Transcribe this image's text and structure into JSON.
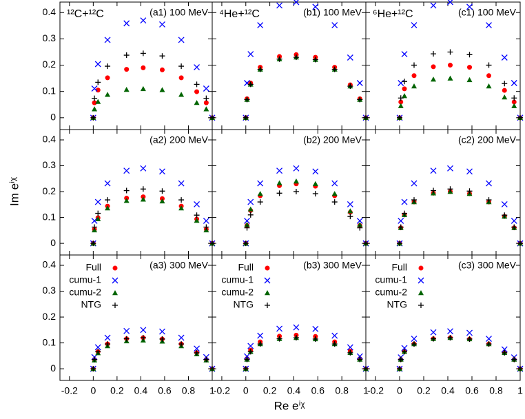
{
  "x_label": "Re eⁱᵡ",
  "y_label": "Im eⁱᵡ",
  "chart_data": [
    {
      "type": "scatter",
      "title": "(a1) 100 MeV",
      "annotation": "¹²C+¹²C",
      "xlim": [
        -0.28,
        1.0
      ],
      "ylim": [
        -0.045,
        0.44
      ],
      "yticks": [
        0,
        0.1,
        0.2,
        0.3,
        0.4
      ],
      "x": [
        0,
        0.01,
        0.04,
        0.12,
        0.28,
        0.42,
        0.58,
        0.74,
        0.87,
        0.95,
        1
      ],
      "series": [
        {
          "color": "#ff0000",
          "marker": "circle",
          "values": [
            0,
            0.057,
            0.105,
            0.152,
            0.184,
            0.19,
            0.182,
            0.152,
            0.099,
            0.057,
            0
          ]
        },
        {
          "color": "#0000ff",
          "marker": "x",
          "values": [
            0,
            0.111,
            0.204,
            0.296,
            0.359,
            0.37,
            0.355,
            0.296,
            0.192,
            0.111,
            0
          ]
        },
        {
          "color": "#006400",
          "marker": "triangle",
          "values": [
            0,
            0.033,
            0.061,
            0.088,
            0.107,
            0.11,
            0.106,
            0.088,
            0.057,
            0.033,
            0
          ]
        },
        {
          "color": "#000000",
          "marker": "plus",
          "values": [
            0,
            0.074,
            0.135,
            0.196,
            0.238,
            0.245,
            0.235,
            0.196,
            0.127,
            0.074,
            0
          ]
        }
      ]
    },
    {
      "type": "scatter",
      "title": "(b1) 100 MeV",
      "annotation": "⁴He+¹²C",
      "xlim": [
        -0.28,
        1.0
      ],
      "ylim": [
        -0.045,
        0.44
      ],
      "x": [
        0,
        0.01,
        0.04,
        0.12,
        0.28,
        0.42,
        0.58,
        0.74,
        0.87,
        0.95,
        1
      ],
      "series": [
        {
          "color": "#ff0000",
          "marker": "circle",
          "values": [
            0,
            0.072,
            0.132,
            0.192,
            0.233,
            0.24,
            0.23,
            0.192,
            0.125,
            0.072,
            0
          ]
        },
        {
          "color": "#0000ff",
          "marker": "x",
          "values": [
            0,
            0.132,
            0.242,
            0.352,
            0.427,
            0.44,
            0.422,
            0.352,
            0.229,
            0.132,
            0
          ]
        },
        {
          "color": "#006400",
          "marker": "triangle",
          "values": [
            0,
            0.069,
            0.127,
            0.184,
            0.223,
            0.23,
            0.221,
            0.184,
            0.12,
            0.069,
            0
          ]
        },
        {
          "color": "#000000",
          "marker": "plus",
          "values": [
            0,
            0.069,
            0.127,
            0.184,
            0.223,
            0.23,
            0.221,
            0.184,
            0.12,
            0.069,
            0
          ]
        }
      ]
    },
    {
      "type": "scatter",
      "title": "(c1) 100 MeV",
      "annotation": "⁶He+¹²C",
      "xlim": [
        -0.28,
        1.0
      ],
      "ylim": [
        -0.045,
        0.44
      ],
      "x": [
        0,
        0.01,
        0.04,
        0.12,
        0.28,
        0.42,
        0.58,
        0.74,
        0.87,
        0.95,
        1
      ],
      "series": [
        {
          "color": "#ff0000",
          "marker": "circle",
          "values": [
            0,
            0.06,
            0.11,
            0.16,
            0.194,
            0.2,
            0.192,
            0.16,
            0.104,
            0.06,
            0
          ]
        },
        {
          "color": "#0000ff",
          "marker": "x",
          "values": [
            0,
            0.132,
            0.242,
            0.352,
            0.427,
            0.44,
            0.422,
            0.352,
            0.229,
            0.132,
            0
          ]
        },
        {
          "color": "#006400",
          "marker": "triangle",
          "values": [
            0,
            0.045,
            0.083,
            0.12,
            0.146,
            0.15,
            0.144,
            0.12,
            0.078,
            0.045,
            0
          ]
        },
        {
          "color": "#000000",
          "marker": "plus",
          "values": [
            0,
            0.075,
            0.138,
            0.2,
            0.243,
            0.25,
            0.24,
            0.2,
            0.13,
            0.075,
            0
          ]
        }
      ]
    },
    {
      "type": "scatter",
      "title": "(a2) 200 MeV",
      "xlim": [
        -0.28,
        1.0
      ],
      "ylim": [
        -0.045,
        0.44
      ],
      "yticks": [
        0,
        0.1,
        0.2,
        0.3,
        0.4
      ],
      "x": [
        0,
        0.01,
        0.04,
        0.12,
        0.28,
        0.42,
        0.58,
        0.74,
        0.87,
        0.95,
        1
      ],
      "series": [
        {
          "color": "#ff0000",
          "marker": "circle",
          "values": [
            0,
            0.054,
            0.099,
            0.144,
            0.175,
            0.18,
            0.173,
            0.144,
            0.094,
            0.054,
            0
          ]
        },
        {
          "color": "#0000ff",
          "marker": "x",
          "values": [
            0,
            0.087,
            0.16,
            0.232,
            0.281,
            0.29,
            0.278,
            0.232,
            0.151,
            0.087,
            0
          ]
        },
        {
          "color": "#006400",
          "marker": "triangle",
          "values": [
            0,
            0.051,
            0.094,
            0.136,
            0.165,
            0.17,
            0.163,
            0.136,
            0.088,
            0.051,
            0
          ]
        },
        {
          "color": "#000000",
          "marker": "plus",
          "values": [
            0,
            0.063,
            0.116,
            0.168,
            0.204,
            0.21,
            0.202,
            0.168,
            0.109,
            0.063,
            0
          ]
        }
      ]
    },
    {
      "type": "scatter",
      "title": "(b2) 200 MeV",
      "xlim": [
        -0.28,
        1.0
      ],
      "ylim": [
        -0.045,
        0.44
      ],
      "x": [
        0,
        0.01,
        0.04,
        0.12,
        0.28,
        0.42,
        0.58,
        0.74,
        0.87,
        0.95,
        1
      ],
      "series": [
        {
          "color": "#ff0000",
          "marker": "circle",
          "values": [
            0,
            0.069,
            0.127,
            0.184,
            0.223,
            0.23,
            0.221,
            0.184,
            0.12,
            0.069,
            0
          ]
        },
        {
          "color": "#0000ff",
          "marker": "x",
          "values": [
            0,
            0.087,
            0.16,
            0.232,
            0.281,
            0.29,
            0.278,
            0.232,
            0.151,
            0.087,
            0
          ]
        },
        {
          "color": "#006400",
          "marker": "triangle",
          "values": [
            0,
            0.072,
            0.132,
            0.192,
            0.233,
            0.24,
            0.23,
            0.192,
            0.125,
            0.072,
            0
          ]
        },
        {
          "color": "#000000",
          "marker": "plus",
          "values": [
            0,
            0.06,
            0.11,
            0.16,
            0.194,
            0.2,
            0.192,
            0.16,
            0.104,
            0.06,
            0
          ]
        }
      ]
    },
    {
      "type": "scatter",
      "title": "(c2) 200 MeV",
      "xlim": [
        -0.28,
        1.0
      ],
      "ylim": [
        -0.045,
        0.44
      ],
      "x": [
        0,
        0.01,
        0.04,
        0.12,
        0.28,
        0.42,
        0.58,
        0.74,
        0.87,
        0.95,
        1
      ],
      "series": [
        {
          "color": "#ff0000",
          "marker": "circle",
          "values": [
            0,
            0.06,
            0.11,
            0.16,
            0.194,
            0.2,
            0.192,
            0.16,
            0.104,
            0.06,
            0
          ]
        },
        {
          "color": "#0000ff",
          "marker": "x",
          "values": [
            0,
            0.087,
            0.16,
            0.232,
            0.281,
            0.29,
            0.278,
            0.232,
            0.151,
            0.087,
            0
          ]
        },
        {
          "color": "#006400",
          "marker": "triangle",
          "values": [
            0,
            0.06,
            0.11,
            0.16,
            0.194,
            0.2,
            0.192,
            0.16,
            0.104,
            0.06,
            0
          ]
        },
        {
          "color": "#000000",
          "marker": "plus",
          "values": [
            0,
            0.063,
            0.116,
            0.168,
            0.204,
            0.21,
            0.202,
            0.168,
            0.109,
            0.063,
            0
          ]
        }
      ]
    },
    {
      "type": "scatter",
      "title": "(a3) 300 MeV",
      "legend": true,
      "xlim": [
        -0.28,
        1.0
      ],
      "ylim": [
        -0.045,
        0.44
      ],
      "yticks": [
        0,
        0.1,
        0.2,
        0.3,
        0.4
      ],
      "xticks": [
        -0.2,
        0,
        0.2,
        0.4,
        0.6,
        0.8,
        1
      ],
      "x": [
        0,
        0.01,
        0.04,
        0.12,
        0.28,
        0.42,
        0.58,
        0.74,
        0.87,
        0.95,
        1
      ],
      "series": [
        {
          "name": "Full",
          "color": "#ff0000",
          "marker": "circle",
          "values": [
            0,
            0.036,
            0.066,
            0.096,
            0.116,
            0.12,
            0.115,
            0.096,
            0.062,
            0.036,
            0
          ]
        },
        {
          "name": "cumu-1",
          "color": "#0000ff",
          "marker": "x",
          "values": [
            0,
            0.045,
            0.083,
            0.12,
            0.146,
            0.15,
            0.144,
            0.12,
            0.078,
            0.045,
            0
          ]
        },
        {
          "name": "cumu-2",
          "color": "#006400",
          "marker": "triangle",
          "values": [
            0,
            0.033,
            0.061,
            0.088,
            0.107,
            0.11,
            0.106,
            0.088,
            0.057,
            0.033,
            0
          ]
        },
        {
          "name": "NTG",
          "color": "#000000",
          "marker": "plus",
          "values": [
            0,
            0.036,
            0.066,
            0.096,
            0.116,
            0.12,
            0.115,
            0.096,
            0.062,
            0.036,
            0
          ]
        }
      ]
    },
    {
      "type": "scatter",
      "title": "(b3) 300 MeV",
      "legend": true,
      "xlim": [
        -0.28,
        1.0
      ],
      "ylim": [
        -0.045,
        0.44
      ],
      "xticks": [
        -0.2,
        0,
        0.2,
        0.4,
        0.6,
        0.8,
        1
      ],
      "x": [
        0,
        0.01,
        0.04,
        0.12,
        0.28,
        0.42,
        0.58,
        0.74,
        0.87,
        0.95,
        1
      ],
      "series": [
        {
          "name": "Full",
          "color": "#ff0000",
          "marker": "circle",
          "values": [
            0,
            0.039,
            0.072,
            0.104,
            0.126,
            0.13,
            0.125,
            0.104,
            0.068,
            0.039,
            0
          ]
        },
        {
          "name": "cumu-1",
          "color": "#0000ff",
          "marker": "x",
          "values": [
            0,
            0.048,
            0.088,
            0.128,
            0.155,
            0.16,
            0.154,
            0.128,
            0.083,
            0.048,
            0
          ]
        },
        {
          "name": "cumu-2",
          "color": "#006400",
          "marker": "triangle",
          "values": [
            0,
            0.036,
            0.066,
            0.096,
            0.116,
            0.12,
            0.115,
            0.096,
            0.062,
            0.036,
            0
          ]
        },
        {
          "name": "NTG",
          "color": "#000000",
          "marker": "plus",
          "values": [
            0,
            0.036,
            0.066,
            0.096,
            0.116,
            0.12,
            0.115,
            0.096,
            0.062,
            0.036,
            0
          ]
        }
      ]
    },
    {
      "type": "scatter",
      "title": "(c3) 300 MeV",
      "legend": true,
      "xlim": [
        -0.28,
        1.0
      ],
      "ylim": [
        -0.045,
        0.44
      ],
      "xticks": [
        -0.2,
        0,
        0.2,
        0.4,
        0.6,
        0.8,
        1
      ],
      "x": [
        0,
        0.01,
        0.04,
        0.12,
        0.28,
        0.42,
        0.58,
        0.74,
        0.87,
        0.95,
        1
      ],
      "series": [
        {
          "name": "Full",
          "color": "#ff0000",
          "marker": "circle",
          "values": [
            0,
            0.036,
            0.066,
            0.096,
            0.116,
            0.12,
            0.115,
            0.096,
            0.062,
            0.036,
            0
          ]
        },
        {
          "name": "cumu-1",
          "color": "#0000ff",
          "marker": "x",
          "values": [
            0,
            0.044,
            0.08,
            0.116,
            0.141,
            0.145,
            0.139,
            0.116,
            0.075,
            0.044,
            0
          ]
        },
        {
          "name": "cumu-2",
          "color": "#006400",
          "marker": "triangle",
          "values": [
            0,
            0.036,
            0.066,
            0.096,
            0.116,
            0.12,
            0.115,
            0.096,
            0.062,
            0.036,
            0
          ]
        },
        {
          "name": "NTG",
          "color": "#000000",
          "marker": "plus",
          "values": [
            0,
            0.036,
            0.066,
            0.096,
            0.116,
            0.12,
            0.115,
            0.096,
            0.062,
            0.036,
            0
          ]
        }
      ]
    }
  ]
}
